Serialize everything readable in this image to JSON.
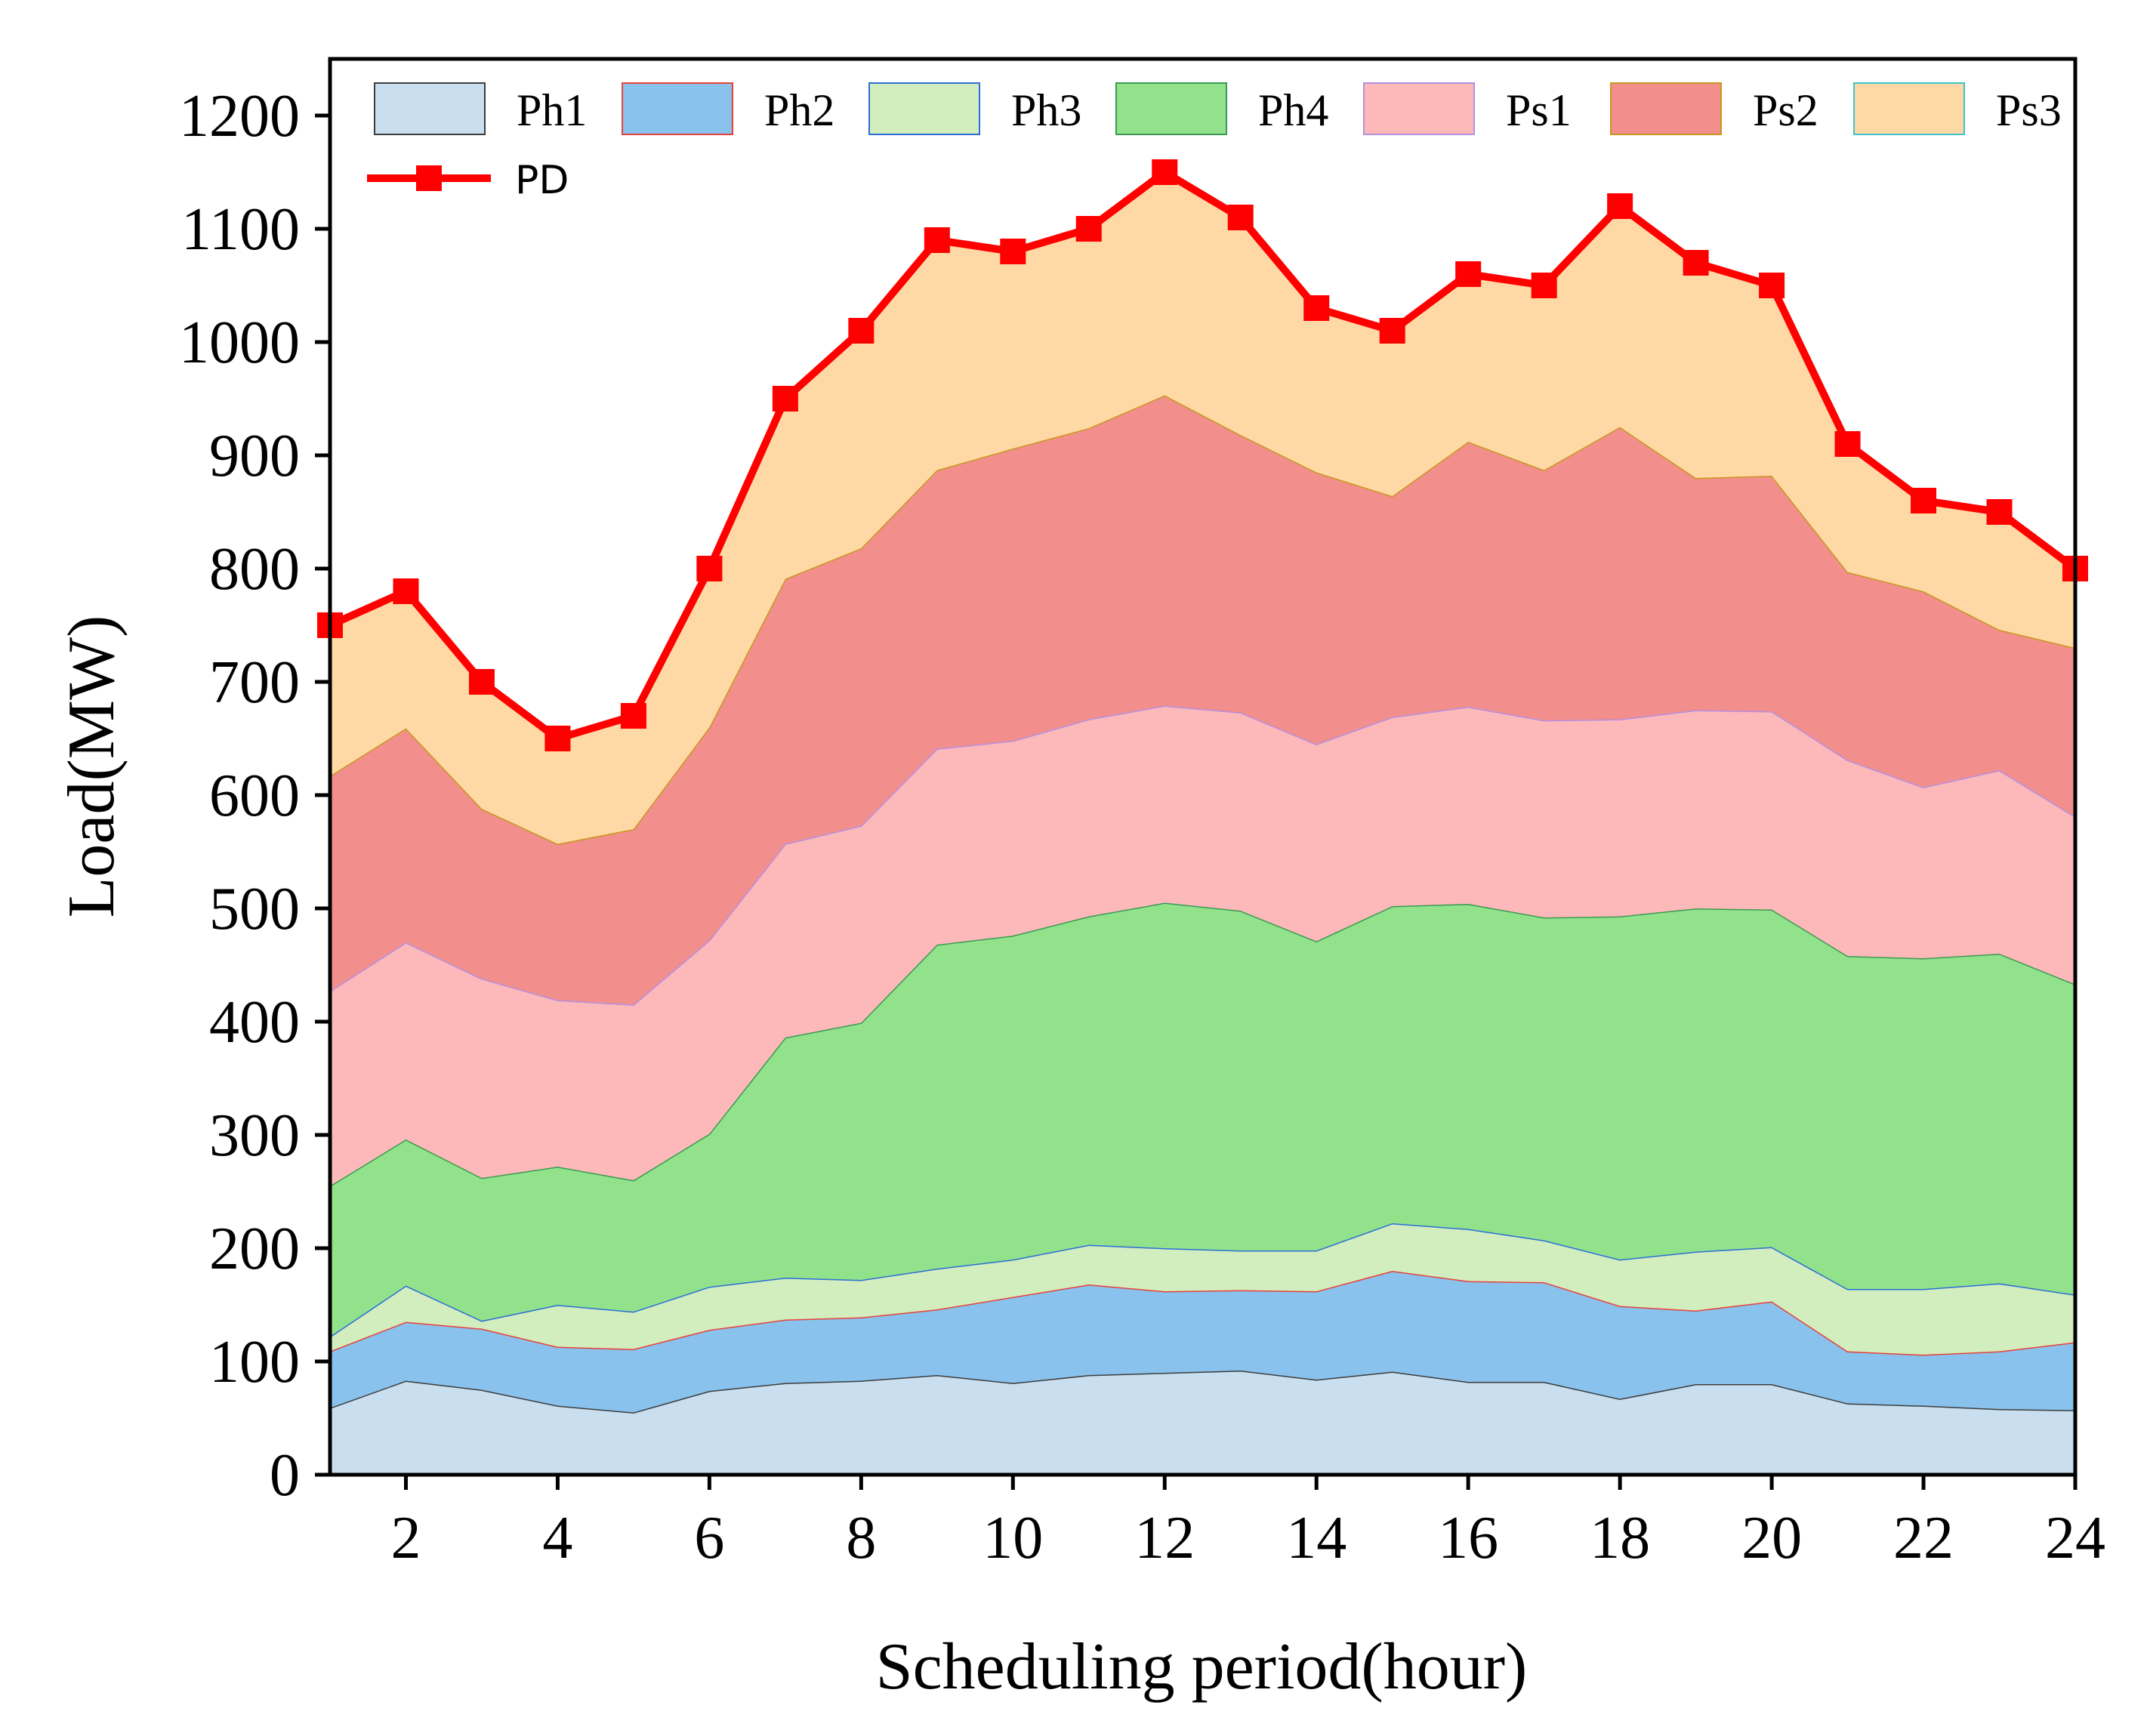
{
  "chart_data": {
    "type": "area",
    "stacked": true,
    "xlabel": "Scheduling period(hour)",
    "ylabel": "Load(MW)",
    "xlim": [
      1,
      24
    ],
    "ylim": [
      0,
      1250
    ],
    "xticks": [
      2,
      4,
      6,
      8,
      10,
      12,
      14,
      16,
      18,
      20,
      22,
      24
    ],
    "yticks": [
      0,
      100,
      200,
      300,
      400,
      500,
      600,
      700,
      800,
      900,
      1000,
      1100,
      1200
    ],
    "grid": false,
    "legend_position": "top",
    "x": [
      1,
      2,
      3,
      4,
      5,
      6,
      7,
      8,
      9,
      10,
      11,
      12,
      13,
      14,
      15,
      16,
      17,
      18,
      19,
      20,
      21,
      22,
      23,
      24
    ],
    "series": [
      {
        "name": "Ph1",
        "fill": "#c9dff0",
        "stroke": "#3d3d3d",
        "values": [
          59,
          83,
          75,
          61,
          55,
          74,
          81,
          83,
          88,
          81,
          88,
          90,
          92,
          84,
          91,
          82,
          82,
          67,
          80,
          80,
          63,
          61,
          58,
          57
        ]
      },
      {
        "name": "Ph2",
        "fill": "#89c2ec",
        "stroke": "#e8413a",
        "values": [
          50,
          52,
          54,
          52,
          56,
          54,
          56,
          56,
          58,
          76,
          80,
          72,
          71,
          78,
          89,
          89,
          88,
          82,
          65,
          73,
          46,
          45,
          51,
          60
        ]
      },
      {
        "name": "Ph3",
        "fill": "#d2edbe",
        "stroke": "#2b6fd6",
        "values": [
          13,
          32,
          7,
          37,
          33,
          38,
          37,
          33,
          36,
          33,
          35,
          38,
          35,
          36,
          42,
          46,
          37,
          41,
          52,
          48,
          55,
          58,
          60,
          42
        ]
      },
      {
        "name": "Ph4",
        "fill": "#92e28c",
        "stroke": "#3a9a52",
        "values": [
          133,
          129,
          126,
          122,
          116,
          135,
          212,
          227,
          286,
          286,
          290,
          305,
          300,
          273,
          280,
          287,
          285,
          303,
          303,
          298,
          294,
          292,
          291,
          274
        ]
      },
      {
        "name": "Ps1",
        "fill": "#fdb9ba",
        "stroke": "#b58fe0",
        "values": [
          172,
          174,
          176,
          147,
          155,
          171,
          171,
          174,
          173,
          172,
          174,
          174,
          175,
          174,
          167,
          174,
          174,
          174,
          175,
          175,
          173,
          151,
          162,
          148
        ]
      },
      {
        "name": "Ps2",
        "fill": "#f28f8d",
        "stroke": "#c9961e",
        "values": [
          190,
          189,
          150,
          138,
          155,
          188,
          234,
          245,
          246,
          258,
          257,
          274,
          245,
          240,
          195,
          234,
          221,
          258,
          205,
          208,
          166,
          173,
          124,
          149
        ]
      },
      {
        "name": "Ps3",
        "fill": "#fed9a6",
        "stroke": "#3cc4c9",
        "values": [
          133,
          121,
          112,
          93,
          100,
          140,
          159,
          192,
          203,
          174,
          176,
          197,
          192,
          145,
          146,
          148,
          163,
          195,
          190,
          168,
          113,
          80,
          104,
          70
        ]
      }
    ],
    "line_series": {
      "name": "PD",
      "color": "#ff0000",
      "marker": "square",
      "values": [
        750,
        780,
        700,
        650,
        670,
        800,
        950,
        1010,
        1090,
        1080,
        1100,
        1150,
        1110,
        1030,
        1010,
        1060,
        1050,
        1120,
        1070,
        1050,
        910,
        860,
        850,
        800
      ]
    }
  }
}
